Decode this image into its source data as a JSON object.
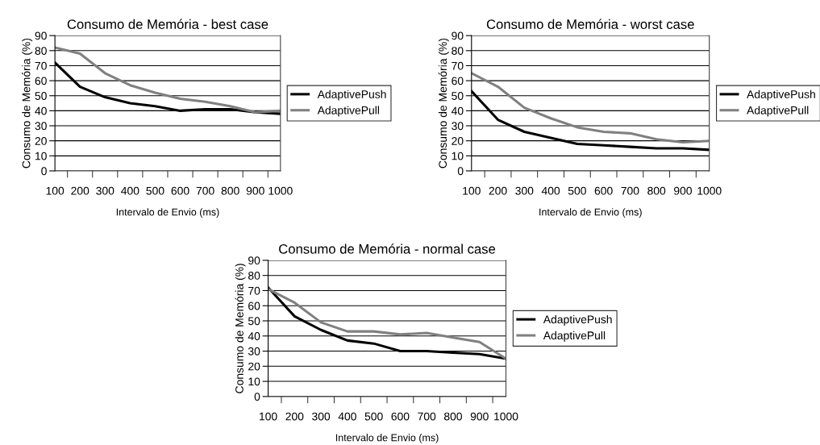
{
  "chart_data": [
    {
      "type": "line",
      "title": "Consumo de Memória - best case",
      "xlabel": "Intervalo de Envio (ms)",
      "ylabel": "Consumo de Memória (%)",
      "categories": [
        "100",
        "200",
        "300",
        "400",
        "500",
        "600",
        "700",
        "800",
        "900",
        "1000"
      ],
      "ylim": [
        0,
        90
      ],
      "yticks": [
        0,
        10,
        20,
        30,
        40,
        50,
        60,
        70,
        80,
        90
      ],
      "grid": "y",
      "legend": "right",
      "marker": "none",
      "line_style": "solid",
      "series": [
        {
          "name": "AdaptivePush",
          "color": "#000000",
          "values": [
            72,
            56,
            49,
            45,
            43,
            40,
            41,
            41,
            39,
            38
          ]
        },
        {
          "name": "AdaptivePull",
          "color": "#808080",
          "values": [
            82,
            78,
            65,
            57,
            52,
            48,
            46,
            43,
            39,
            40
          ]
        }
      ]
    },
    {
      "type": "line",
      "title": "Consumo de Memória - worst case",
      "xlabel": "Intervalo de Envio (ms)",
      "ylabel": "Consumo de Memória (%)",
      "categories": [
        "100",
        "200",
        "300",
        "400",
        "500",
        "600",
        "700",
        "800",
        "900",
        "1000"
      ],
      "ylim": [
        0,
        90
      ],
      "yticks": [
        0,
        10,
        20,
        30,
        40,
        50,
        60,
        70,
        80,
        90
      ],
      "grid": "y",
      "legend": "right",
      "marker": "none",
      "line_style": "solid",
      "series": [
        {
          "name": "AdaptivePush",
          "color": "#000000",
          "values": [
            53,
            34,
            26,
            22,
            18,
            17,
            16,
            15,
            15,
            14
          ]
        },
        {
          "name": "AdaptivePull",
          "color": "#808080",
          "values": [
            65,
            56,
            42,
            35,
            29,
            26,
            25,
            21,
            19,
            20
          ]
        }
      ]
    },
    {
      "type": "line",
      "title": "Consumo de Memória - normal case",
      "xlabel": "Intervalo de Envio (ms)",
      "ylabel": "Consumo de Memória (%)",
      "categories": [
        "100",
        "200",
        "300",
        "400",
        "500",
        "600",
        "700",
        "800",
        "900",
        "1000"
      ],
      "ylim": [
        0,
        90
      ],
      "yticks": [
        0,
        10,
        20,
        30,
        40,
        50,
        60,
        70,
        80,
        90
      ],
      "grid": "y",
      "legend": "right",
      "marker": "none",
      "line_style": "solid",
      "series": [
        {
          "name": "AdaptivePush",
          "color": "#000000",
          "values": [
            72,
            53,
            44,
            37,
            35,
            30,
            30,
            29,
            28,
            25
          ]
        },
        {
          "name": "AdaptivePull",
          "color": "#808080",
          "values": [
            71,
            62,
            49,
            43,
            43,
            41,
            42,
            39,
            36,
            25
          ]
        }
      ]
    }
  ]
}
